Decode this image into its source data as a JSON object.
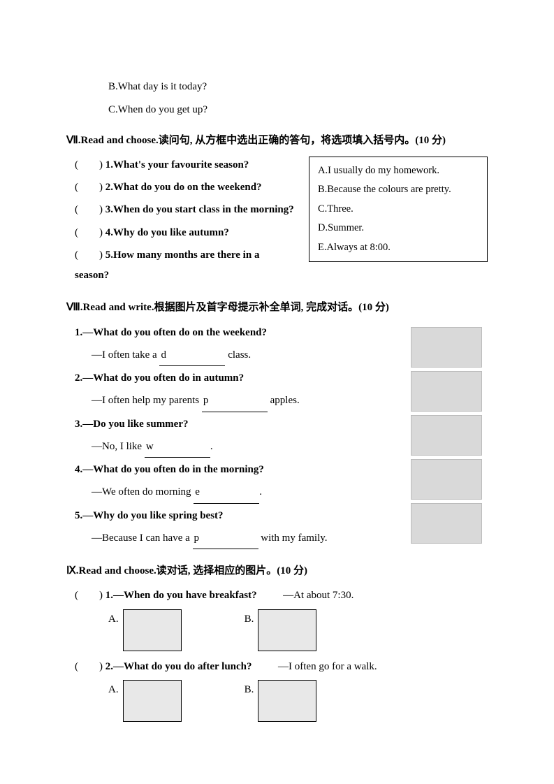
{
  "top_options": {
    "b": "B.What day is it today?",
    "c": "C.When do you get up?"
  },
  "s7": {
    "title": "Ⅶ.Read and choose.读问句, 从方框中选出正确的答句，将选项填入括号内。(10 分)",
    "items": [
      "1.What's your favourite season?",
      "2.What do you do on the weekend?",
      "3.When do you start class in the morning?",
      "4.Why do you like autumn?",
      "5.How many months are there in a season?"
    ],
    "box": [
      "A.I usually do my homework.",
      "B.Because the colours are pretty.",
      "C.Three.",
      "D.Summer.",
      "E.Always at 8:00."
    ]
  },
  "s8": {
    "title": "Ⅷ.Read and write.根据图片及首字母提示补全单词, 完成对话。(10 分)",
    "q1_q": "1.—What do you often do on the weekend?",
    "q1_a_pre": "—I often take a ",
    "q1_letter": "d",
    "q1_a_post": " class.",
    "q2_q": "2.—What do you often do in autumn?",
    "q2_a_pre": "—I often help my parents ",
    "q2_letter": "p",
    "q2_a_post": " apples.",
    "q3_q": "3.—Do you like summer?",
    "q3_a_pre": "—No, I like ",
    "q3_letter": "w",
    "q3_a_post": ".",
    "q4_q": "4.—What do you often do in the morning?",
    "q4_a_pre": "—We often do morning ",
    "q4_letter": "e",
    "q4_a_post": ".",
    "q5_q": "5.—Why do you like spring best?",
    "q5_a_pre": "—Because I can have a ",
    "q5_letter": "p",
    "q5_a_post": " with my family."
  },
  "s9": {
    "title": "Ⅸ.Read and choose.读对话, 选择相应的图片。(10 分)",
    "q1_q": "1.—When do you have breakfast?",
    "q1_a": "—At about 7:30.",
    "q2_q": "2.—What do you do after lunch?",
    "q2_a": "—I often go for a walk.",
    "choice_a": "A.",
    "choice_b": "B."
  },
  "paren": "(　　)"
}
